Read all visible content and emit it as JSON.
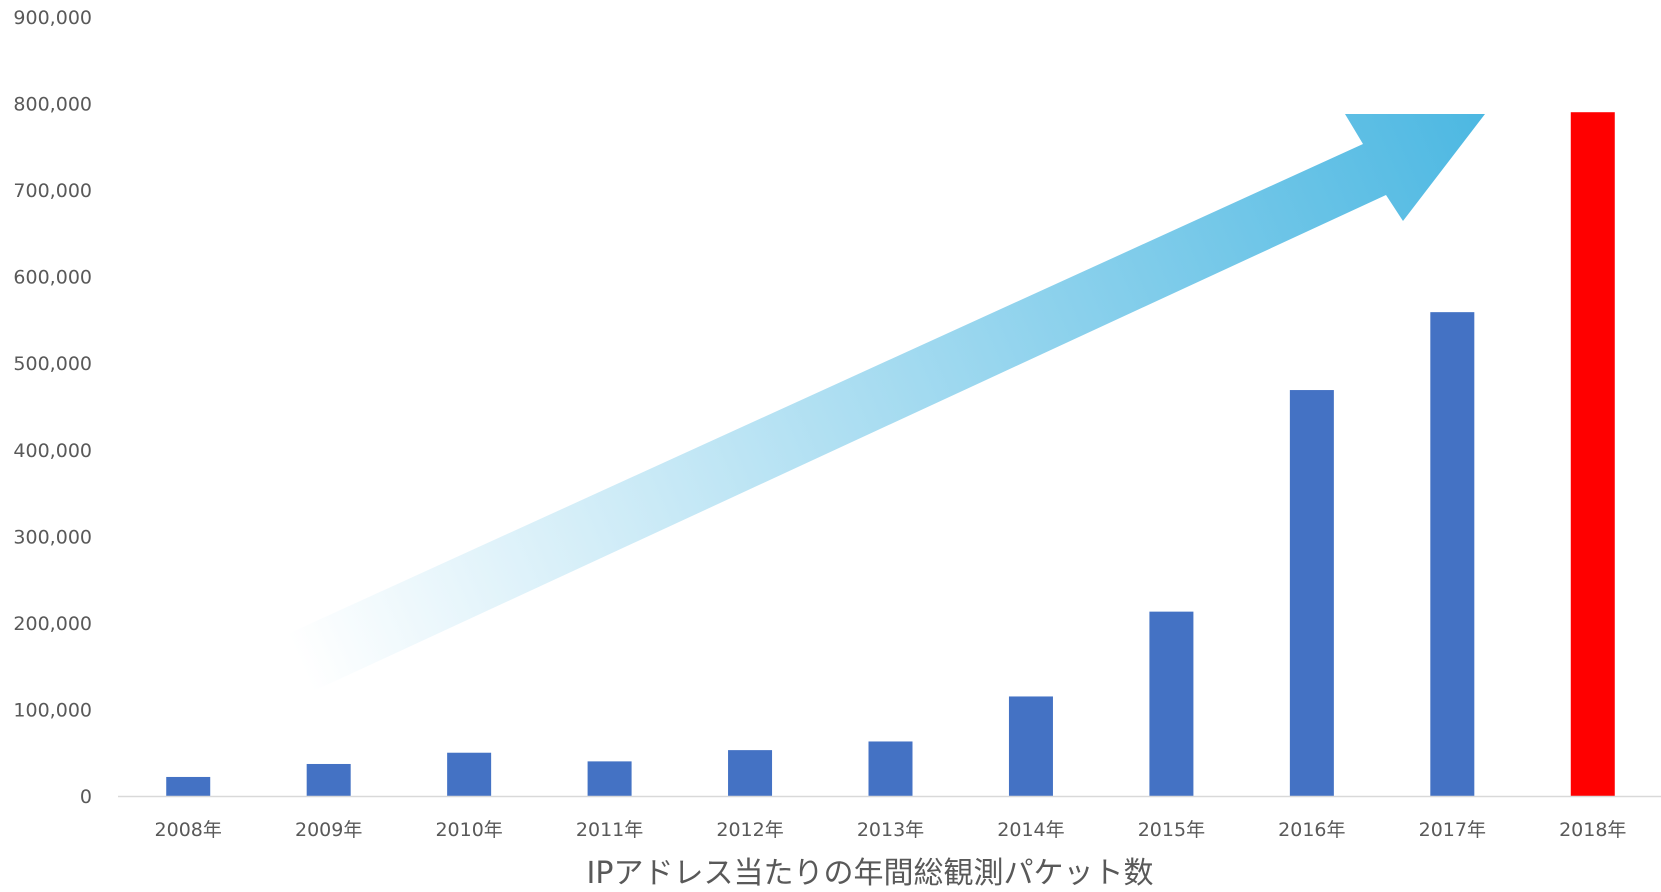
{
  "chart_data": {
    "type": "bar",
    "title": "",
    "xlabel": "IPアドレス当たりの年間総観測パケット数",
    "ylabel": "",
    "categories": [
      "2008年",
      "2009年",
      "2010年",
      "2011年",
      "2012年",
      "2013年",
      "2014年",
      "2015年",
      "2016年",
      "2017年",
      "2018年"
    ],
    "series": [
      {
        "values": [
          22000,
          37000,
          50000,
          40000,
          53000,
          63000,
          115000,
          213000,
          469000,
          559000,
          790000
        ]
      }
    ],
    "ylim": [
      0,
      900000
    ],
    "yticks": [
      0,
      100000,
      200000,
      300000,
      400000,
      500000,
      600000,
      700000,
      800000,
      900000
    ],
    "ytick_labels": [
      "0",
      "100,000",
      "200,000",
      "300,000",
      "400,000",
      "500,000",
      "600,000",
      "700,000",
      "800,000",
      "900,000"
    ],
    "grid": false,
    "legend": "none",
    "colors": {
      "bar": "#4472C4",
      "highlight_bar": "#FF0000",
      "arrow_start": "#FFFFFF",
      "arrow_end": "#4DB8E2",
      "axis_line": "#D9D9D9",
      "text": "#595959"
    },
    "highlight_index": 10,
    "annotations": [
      {
        "type": "trend-arrow",
        "description": "upward gradient arrow indicating growth"
      }
    ]
  }
}
